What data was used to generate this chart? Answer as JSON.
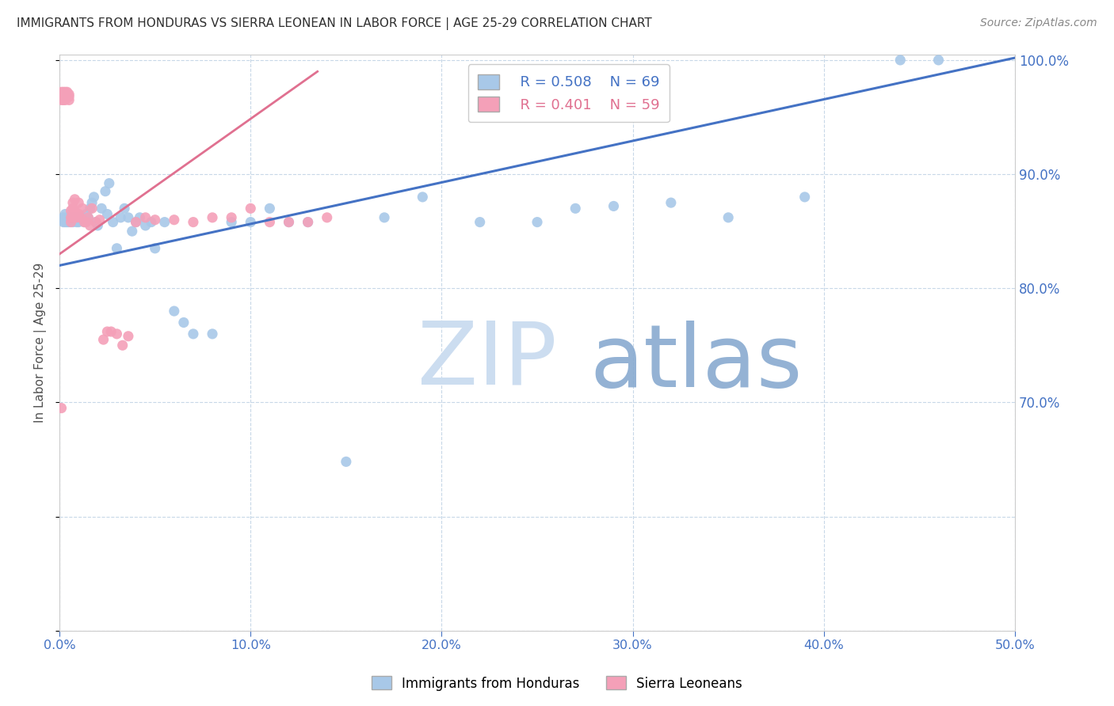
{
  "title": "IMMIGRANTS FROM HONDURAS VS SIERRA LEONEAN IN LABOR FORCE | AGE 25-29 CORRELATION CHART",
  "source": "Source: ZipAtlas.com",
  "ylabel": "In Labor Force | Age 25-29",
  "xlim": [
    0.0,
    0.5
  ],
  "ylim": [
    0.5,
    1.005
  ],
  "legend1_R": "0.508",
  "legend1_N": "69",
  "legend2_R": "0.401",
  "legend2_N": "59",
  "blue_color": "#a8c8e8",
  "pink_color": "#f4a0b8",
  "blue_line_color": "#4472c4",
  "pink_line_color": "#e07090",
  "axis_color": "#4472c4",
  "grid_color": "#c8d8e8",
  "title_color": "#303030",
  "blue_x": [
    0.001,
    0.002,
    0.002,
    0.003,
    0.003,
    0.004,
    0.004,
    0.004,
    0.005,
    0.005,
    0.005,
    0.006,
    0.006,
    0.007,
    0.007,
    0.007,
    0.008,
    0.008,
    0.009,
    0.009,
    0.01,
    0.01,
    0.011,
    0.012,
    0.013,
    0.014,
    0.015,
    0.016,
    0.017,
    0.018,
    0.019,
    0.02,
    0.022,
    0.024,
    0.025,
    0.026,
    0.028,
    0.03,
    0.032,
    0.034,
    0.036,
    0.038,
    0.04,
    0.042,
    0.045,
    0.048,
    0.05,
    0.055,
    0.06,
    0.065,
    0.07,
    0.08,
    0.09,
    0.1,
    0.11,
    0.12,
    0.13,
    0.15,
    0.17,
    0.19,
    0.22,
    0.25,
    0.27,
    0.29,
    0.32,
    0.35,
    0.39,
    0.44,
    0.46
  ],
  "blue_y": [
    0.86,
    0.862,
    0.858,
    0.865,
    0.858,
    0.862,
    0.86,
    0.858,
    0.86,
    0.862,
    0.858,
    0.862,
    0.86,
    0.858,
    0.862,
    0.86,
    0.86,
    0.862,
    0.858,
    0.862,
    0.858,
    0.862,
    0.86,
    0.862,
    0.858,
    0.865,
    0.862,
    0.87,
    0.875,
    0.88,
    0.858,
    0.855,
    0.87,
    0.885,
    0.865,
    0.892,
    0.858,
    0.835,
    0.862,
    0.87,
    0.862,
    0.85,
    0.858,
    0.862,
    0.855,
    0.858,
    0.835,
    0.858,
    0.78,
    0.77,
    0.76,
    0.76,
    0.858,
    0.858,
    0.87,
    0.858,
    0.858,
    0.648,
    0.862,
    0.88,
    0.858,
    0.858,
    0.87,
    0.872,
    0.875,
    0.862,
    0.88,
    1.0,
    1.0
  ],
  "pink_x": [
    0.001,
    0.001,
    0.001,
    0.001,
    0.002,
    0.002,
    0.002,
    0.002,
    0.002,
    0.003,
    0.003,
    0.003,
    0.003,
    0.003,
    0.004,
    0.004,
    0.004,
    0.005,
    0.005,
    0.005,
    0.006,
    0.006,
    0.006,
    0.007,
    0.007,
    0.007,
    0.008,
    0.008,
    0.009,
    0.01,
    0.01,
    0.011,
    0.012,
    0.013,
    0.014,
    0.015,
    0.016,
    0.017,
    0.019,
    0.021,
    0.023,
    0.025,
    0.027,
    0.03,
    0.033,
    0.036,
    0.04,
    0.045,
    0.05,
    0.06,
    0.07,
    0.08,
    0.09,
    0.1,
    0.11,
    0.12,
    0.13,
    0.14,
    0.001
  ],
  "pink_y": [
    0.97,
    0.968,
    0.972,
    0.965,
    0.968,
    0.972,
    0.965,
    0.97,
    0.968,
    0.97,
    0.968,
    0.972,
    0.965,
    0.97,
    0.97,
    0.968,
    0.972,
    0.97,
    0.965,
    0.968,
    0.868,
    0.858,
    0.862,
    0.87,
    0.862,
    0.875,
    0.868,
    0.878,
    0.862,
    0.865,
    0.875,
    0.862,
    0.87,
    0.858,
    0.858,
    0.862,
    0.855,
    0.87,
    0.858,
    0.86,
    0.755,
    0.762,
    0.762,
    0.76,
    0.75,
    0.758,
    0.858,
    0.862,
    0.86,
    0.86,
    0.858,
    0.862,
    0.862,
    0.87,
    0.858,
    0.858,
    0.858,
    0.862,
    0.695
  ]
}
